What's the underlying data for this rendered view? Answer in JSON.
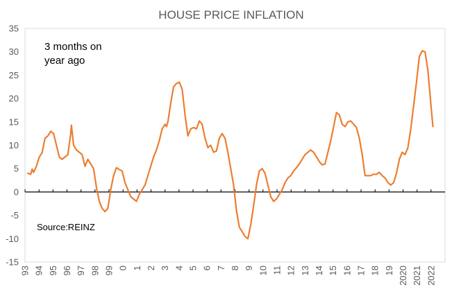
{
  "chart_data": {
    "type": "line",
    "title": "HOUSE PRICE INFLATION",
    "xlabel": "",
    "ylabel": "",
    "annotation_lines": [
      "3 months on",
      "year ago"
    ],
    "source": "Source:REINZ",
    "ylim": [
      -15,
      35
    ],
    "yticks": [
      "35",
      "30",
      "25",
      "20",
      "15",
      "10",
      "5",
      "0",
      "-5",
      "-10",
      "-15"
    ],
    "xlim": [
      1993.0,
      2022.4
    ],
    "xtick_labels": [
      "93",
      "94",
      "95",
      "96",
      "97",
      "98",
      "99",
      "0",
      "1",
      "2",
      "3",
      "4",
      "5",
      "6",
      "7",
      "8",
      "9",
      "10",
      "11",
      "12",
      "13",
      "14",
      "15",
      "16",
      "17",
      "18",
      "19",
      "2020",
      "2021",
      "2022"
    ],
    "grid": false,
    "line_color": "#ED7D31",
    "series": [
      {
        "points": [
          [
            1993.2,
            4.0
          ],
          [
            1993.4,
            3.8
          ],
          [
            1993.5,
            4.9
          ],
          [
            1993.6,
            4.2
          ],
          [
            1993.8,
            5.5
          ],
          [
            1994.0,
            7.5
          ],
          [
            1994.2,
            8.4
          ],
          [
            1994.4,
            11.5
          ],
          [
            1994.6,
            12.0
          ],
          [
            1994.8,
            13.0
          ],
          [
            1995.0,
            12.5
          ],
          [
            1995.2,
            10.0
          ],
          [
            1995.4,
            7.5
          ],
          [
            1995.6,
            7.0
          ],
          [
            1995.8,
            7.5
          ],
          [
            1996.0,
            8.0
          ],
          [
            1996.2,
            12.5
          ],
          [
            1996.25,
            14.3
          ],
          [
            1996.4,
            10.0
          ],
          [
            1996.6,
            9.0
          ],
          [
            1996.8,
            8.5
          ],
          [
            1997.0,
            8.0
          ],
          [
            1997.2,
            5.5
          ],
          [
            1997.4,
            7.0
          ],
          [
            1997.6,
            6.0
          ],
          [
            1997.8,
            5.0
          ],
          [
            1998.0,
            1.0
          ],
          [
            1998.2,
            -2.0
          ],
          [
            1998.4,
            -3.5
          ],
          [
            1998.6,
            -4.2
          ],
          [
            1998.8,
            -3.5
          ],
          [
            1999.0,
            0.5
          ],
          [
            1999.2,
            3.5
          ],
          [
            1999.4,
            5.2
          ],
          [
            1999.6,
            4.8
          ],
          [
            1999.8,
            4.5
          ],
          [
            2000.0,
            2.0
          ],
          [
            2000.2,
            0.5
          ],
          [
            2000.4,
            -1.0
          ],
          [
            2000.6,
            -1.5
          ],
          [
            2000.8,
            -2.0
          ],
          [
            2001.0,
            -0.5
          ],
          [
            2001.2,
            0.5
          ],
          [
            2001.4,
            1.5
          ],
          [
            2001.6,
            3.5
          ],
          [
            2001.8,
            5.5
          ],
          [
            2002.0,
            7.5
          ],
          [
            2002.2,
            9.0
          ],
          [
            2002.4,
            11.0
          ],
          [
            2002.6,
            13.5
          ],
          [
            2002.8,
            14.5
          ],
          [
            2002.9,
            14.0
          ],
          [
            2003.0,
            15.0
          ],
          [
            2003.2,
            19.0
          ],
          [
            2003.4,
            22.5
          ],
          [
            2003.6,
            23.2
          ],
          [
            2003.8,
            23.5
          ],
          [
            2004.0,
            22.0
          ],
          [
            2004.2,
            16.5
          ],
          [
            2004.4,
            12.0
          ],
          [
            2004.6,
            13.5
          ],
          [
            2004.8,
            13.8
          ],
          [
            2005.0,
            13.5
          ],
          [
            2005.2,
            15.2
          ],
          [
            2005.4,
            14.5
          ],
          [
            2005.6,
            11.5
          ],
          [
            2005.8,
            9.5
          ],
          [
            2006.0,
            10.0
          ],
          [
            2006.2,
            8.5
          ],
          [
            2006.4,
            8.8
          ],
          [
            2006.6,
            11.5
          ],
          [
            2006.8,
            12.5
          ],
          [
            2007.0,
            11.5
          ],
          [
            2007.2,
            8.5
          ],
          [
            2007.4,
            5.0
          ],
          [
            2007.6,
            1.5
          ],
          [
            2007.8,
            -4.0
          ],
          [
            2008.0,
            -7.5
          ],
          [
            2008.2,
            -8.5
          ],
          [
            2008.4,
            -9.5
          ],
          [
            2008.6,
            -10.0
          ],
          [
            2008.8,
            -7.0
          ],
          [
            2009.0,
            -3.0
          ],
          [
            2009.2,
            1.5
          ],
          [
            2009.4,
            4.5
          ],
          [
            2009.6,
            5.0
          ],
          [
            2009.8,
            4.0
          ],
          [
            2010.0,
            1.5
          ],
          [
            2010.2,
            -1.0
          ],
          [
            2010.4,
            -2.0
          ],
          [
            2010.6,
            -1.5
          ],
          [
            2010.8,
            -0.5
          ],
          [
            2011.0,
            0.5
          ],
          [
            2011.2,
            2.0
          ],
          [
            2011.4,
            3.0
          ],
          [
            2011.6,
            3.5
          ],
          [
            2011.8,
            4.5
          ],
          [
            2012.0,
            5.2
          ],
          [
            2012.2,
            6.0
          ],
          [
            2012.4,
            7.0
          ],
          [
            2012.6,
            8.0
          ],
          [
            2012.8,
            8.5
          ],
          [
            2013.0,
            9.0
          ],
          [
            2013.2,
            8.5
          ],
          [
            2013.4,
            7.5
          ],
          [
            2013.6,
            6.5
          ],
          [
            2013.8,
            5.8
          ],
          [
            2014.0,
            6.0
          ],
          [
            2014.2,
            8.5
          ],
          [
            2014.4,
            11.0
          ],
          [
            2014.6,
            14.0
          ],
          [
            2014.8,
            17.0
          ],
          [
            2015.0,
            16.5
          ],
          [
            2015.2,
            14.5
          ],
          [
            2015.4,
            14.0
          ],
          [
            2015.6,
            15.0
          ],
          [
            2015.8,
            15.2
          ],
          [
            2016.0,
            14.5
          ],
          [
            2016.2,
            13.8
          ],
          [
            2016.4,
            11.5
          ],
          [
            2016.6,
            8.0
          ],
          [
            2016.8,
            3.5
          ],
          [
            2017.0,
            3.5
          ],
          [
            2017.2,
            3.5
          ],
          [
            2017.4,
            3.8
          ],
          [
            2017.6,
            3.8
          ],
          [
            2017.8,
            4.2
          ],
          [
            2018.0,
            3.5
          ],
          [
            2018.2,
            3.0
          ],
          [
            2018.4,
            2.0
          ],
          [
            2018.6,
            1.5
          ],
          [
            2018.8,
            2.0
          ],
          [
            2019.0,
            4.0
          ],
          [
            2019.2,
            7.0
          ],
          [
            2019.4,
            8.5
          ],
          [
            2019.6,
            8.0
          ],
          [
            2019.8,
            9.5
          ],
          [
            2020.0,
            13.5
          ],
          [
            2020.2,
            18.5
          ],
          [
            2020.4,
            23.5
          ],
          [
            2020.6,
            29.0
          ],
          [
            2020.8,
            30.2
          ],
          [
            2021.0,
            30.0
          ],
          [
            2021.2,
            26.0
          ],
          [
            2021.4,
            19.0
          ],
          [
            2021.55,
            14.0
          ]
        ]
      }
    ]
  }
}
